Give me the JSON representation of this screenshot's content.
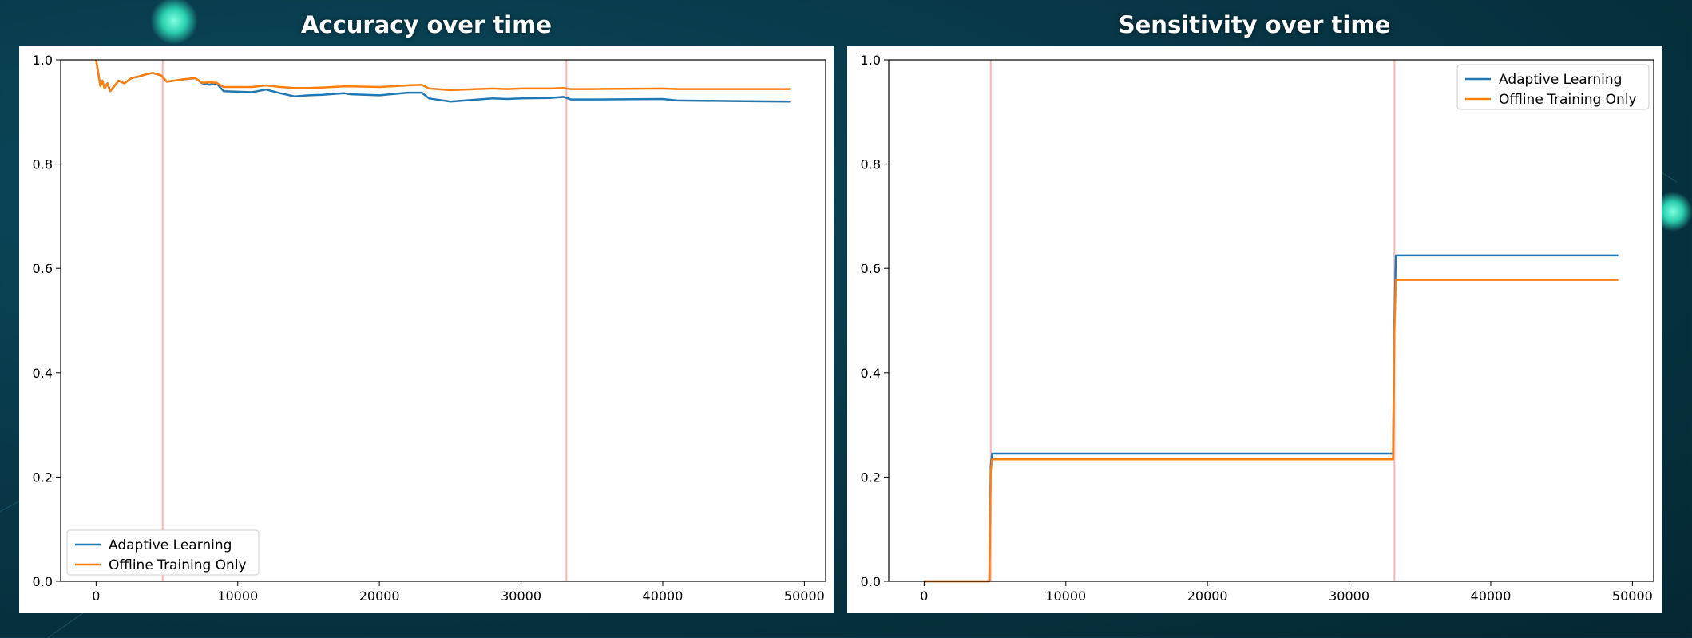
{
  "titles": {
    "left": "Accuracy over time",
    "right": "Sensitivity over time"
  },
  "colors": {
    "adaptive": "#1f77b4",
    "offline": "#ff7f0e",
    "drift_marker": "#ffb3b3",
    "background": "#083848"
  },
  "chart_data": [
    {
      "type": "line",
      "title": "Accuracy over time",
      "xlabel": "",
      "ylabel": "",
      "xlim": [
        -2500,
        51500
      ],
      "ylim": [
        0,
        1.0
      ],
      "x_ticks": [
        0,
        10000,
        20000,
        30000,
        40000,
        50000
      ],
      "y_ticks": [
        0.0,
        0.2,
        0.4,
        0.6,
        0.8,
        1.0
      ],
      "grid": false,
      "legend_position": "lower left",
      "vertical_markers": [
        4700,
        33200
      ],
      "series": [
        {
          "name": "Adaptive Learning",
          "x": [
            0,
            150,
            300,
            450,
            600,
            800,
            1000,
            1300,
            1600,
            2000,
            2500,
            3000,
            3500,
            4000,
            4600,
            5000,
            6000,
            7000,
            7500,
            8000,
            8500,
            9000,
            11000,
            12000,
            13000,
            14000,
            15000,
            16000,
            17500,
            18000,
            20000,
            22000,
            23000,
            23500,
            25000,
            28000,
            29000,
            30000,
            32000,
            33000,
            33500,
            35000,
            40000,
            41000,
            45000,
            49000
          ],
          "y": [
            1.0,
            0.975,
            0.95,
            0.96,
            0.945,
            0.955,
            0.94,
            0.95,
            0.96,
            0.955,
            0.965,
            0.968,
            0.972,
            0.975,
            0.97,
            0.958,
            0.962,
            0.965,
            0.955,
            0.952,
            0.955,
            0.94,
            0.938,
            0.943,
            0.936,
            0.93,
            0.932,
            0.933,
            0.936,
            0.934,
            0.932,
            0.937,
            0.937,
            0.926,
            0.92,
            0.926,
            0.925,
            0.926,
            0.927,
            0.929,
            0.924,
            0.924,
            0.925,
            0.922,
            0.921,
            0.92
          ]
        },
        {
          "name": "Offline Training Only",
          "x": [
            0,
            150,
            300,
            450,
            600,
            800,
            1000,
            1300,
            1600,
            2000,
            2500,
            3000,
            3500,
            4000,
            4600,
            5000,
            6000,
            7000,
            7500,
            8000,
            8500,
            9000,
            11000,
            12000,
            13000,
            14000,
            15000,
            16000,
            17500,
            18000,
            20000,
            22000,
            23000,
            23500,
            25000,
            28000,
            29000,
            30000,
            32000,
            33000,
            33500,
            35000,
            40000,
            41000,
            45000,
            49000
          ],
          "y": [
            1.0,
            0.975,
            0.95,
            0.96,
            0.945,
            0.955,
            0.94,
            0.95,
            0.96,
            0.955,
            0.965,
            0.968,
            0.972,
            0.975,
            0.97,
            0.958,
            0.962,
            0.965,
            0.956,
            0.957,
            0.956,
            0.948,
            0.948,
            0.951,
            0.948,
            0.946,
            0.946,
            0.947,
            0.949,
            0.949,
            0.948,
            0.951,
            0.952,
            0.945,
            0.942,
            0.945,
            0.944,
            0.945,
            0.945,
            0.946,
            0.944,
            0.944,
            0.945,
            0.944,
            0.944,
            0.944
          ]
        }
      ]
    },
    {
      "type": "line",
      "title": "Sensitivity over time",
      "xlabel": "",
      "ylabel": "",
      "xlim": [
        -2500,
        51500
      ],
      "ylim": [
        0,
        1.0
      ],
      "x_ticks": [
        0,
        10000,
        20000,
        30000,
        40000,
        50000
      ],
      "y_ticks": [
        0.0,
        0.2,
        0.4,
        0.6,
        0.8,
        1.0
      ],
      "grid": false,
      "legend_position": "upper right",
      "vertical_markers": [
        4700,
        33200
      ],
      "series": [
        {
          "name": "Adaptive Learning",
          "x": [
            0,
            4600,
            4700,
            4800,
            33100,
            33200,
            33300,
            49000
          ],
          "y": [
            0.0,
            0.0,
            0.22,
            0.245,
            0.245,
            0.5,
            0.625,
            0.625
          ]
        },
        {
          "name": "Offline Training Only",
          "x": [
            0,
            4600,
            4700,
            4800,
            33100,
            33200,
            33300,
            49000
          ],
          "y": [
            0.0,
            0.0,
            0.21,
            0.234,
            0.234,
            0.48,
            0.578,
            0.578
          ]
        }
      ]
    }
  ]
}
